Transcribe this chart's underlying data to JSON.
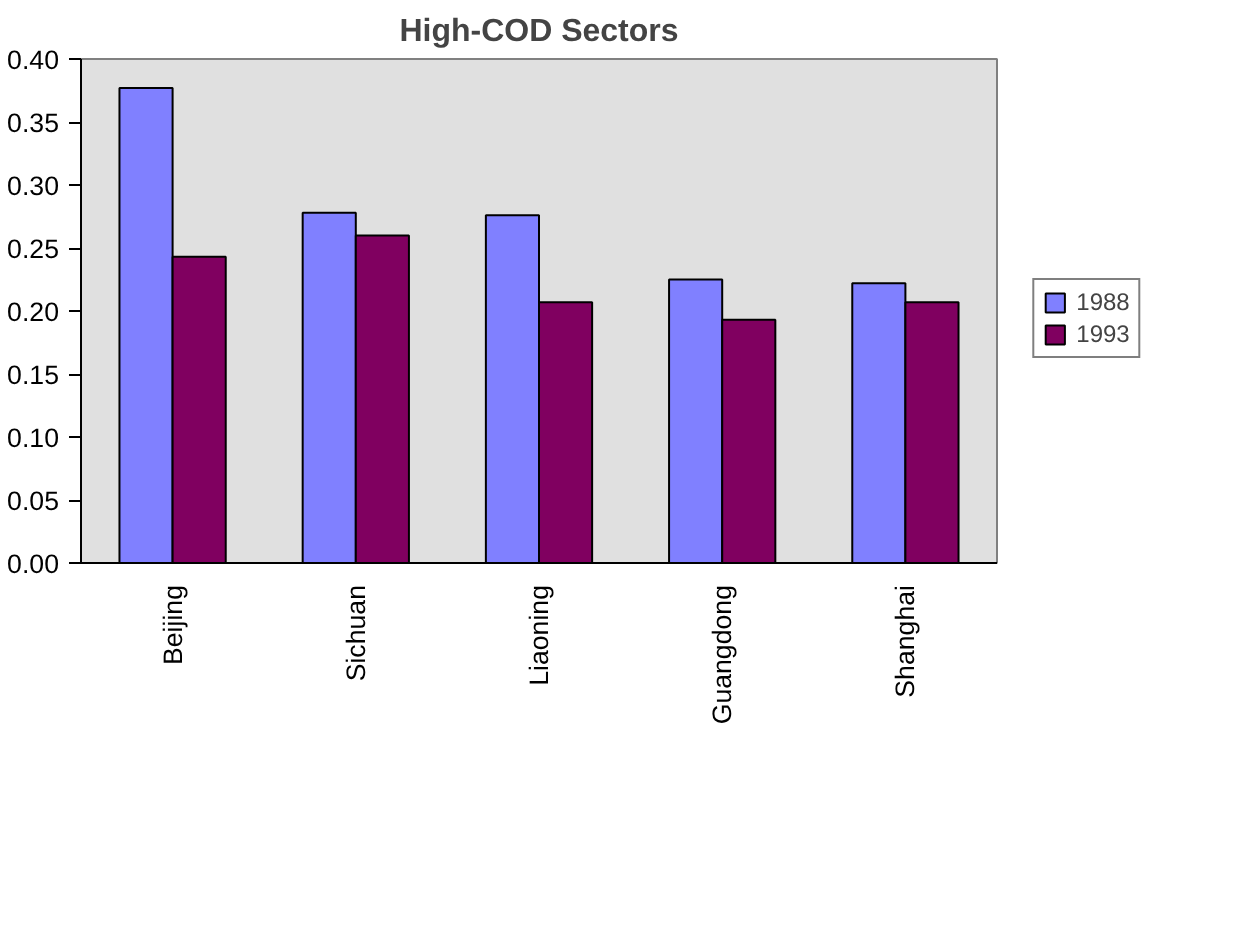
{
  "chart_data": {
    "type": "bar",
    "title": "High-COD Sectors",
    "categories": [
      "Beijing",
      "Sichuan",
      "Liaoning",
      "Guangdong",
      "Shanghai"
    ],
    "series": [
      {
        "name": "1988",
        "color": "#8080ff",
        "values": [
          0.377,
          0.278,
          0.276,
          0.225,
          0.222
        ]
      },
      {
        "name": "1993",
        "color": "#800060",
        "values": [
          0.243,
          0.26,
          0.207,
          0.193,
          0.207
        ]
      }
    ],
    "ylim": [
      0,
      0.4
    ],
    "yticks": [
      {
        "value": 0,
        "label": "0.00"
      },
      {
        "value": 0.05,
        "label": "0.05"
      },
      {
        "value": 0.1,
        "label": "0.10"
      },
      {
        "value": 0.15,
        "label": "0.15"
      },
      {
        "value": 0.2,
        "label": "0.20"
      },
      {
        "value": 0.25,
        "label": "0.25"
      },
      {
        "value": 0.3,
        "label": "0.30"
      },
      {
        "value": 0.35,
        "label": "0.35"
      },
      {
        "value": 0.4,
        "label": "0.40"
      }
    ],
    "grid": false,
    "legend": "right"
  }
}
